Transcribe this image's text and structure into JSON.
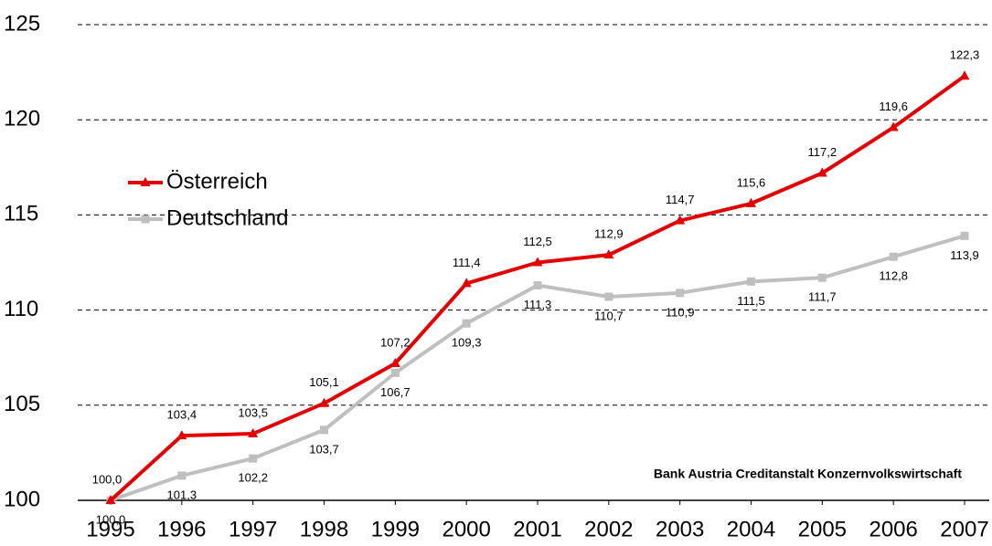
{
  "chart_data": {
    "type": "line",
    "categories": [
      "1995",
      "1996",
      "1997",
      "1998",
      "1999",
      "2000",
      "2001",
      "2002",
      "2003",
      "2004",
      "2005",
      "2006",
      "2007"
    ],
    "series": [
      {
        "name": "Österreich",
        "color": "#e30000",
        "marker": "triangle",
        "values": [
          100.0,
          103.4,
          103.5,
          105.1,
          107.2,
          111.4,
          112.5,
          112.9,
          114.7,
          115.6,
          117.2,
          119.6,
          122.3
        ],
        "value_labels": [
          "100,0",
          "103,4",
          "103,5",
          "105,1",
          "107,2",
          "111,4",
          "112,5",
          "112,9",
          "114,7",
          "115,6",
          "117,2",
          "119,6",
          "122,3"
        ]
      },
      {
        "name": "Deutschland",
        "color": "#bfbfbf",
        "marker": "square",
        "values": [
          100.0,
          101.3,
          102.2,
          103.7,
          106.7,
          109.3,
          111.3,
          110.7,
          110.9,
          111.5,
          111.7,
          112.8,
          113.9
        ],
        "value_labels": [
          "100,0",
          "101,3",
          "102,2",
          "103,7",
          "106,7",
          "109,3",
          "111,3",
          "110,7",
          "110,9",
          "111,5",
          "111,7",
          "112,8",
          "113,9"
        ]
      }
    ],
    "ylim": [
      100,
      125
    ],
    "yticks": [
      100,
      105,
      110,
      115,
      120,
      125
    ],
    "grid": true,
    "legend": "upper left",
    "annotation": "Bank Austria Creditanstalt Konzernvolkswirtschaft"
  }
}
